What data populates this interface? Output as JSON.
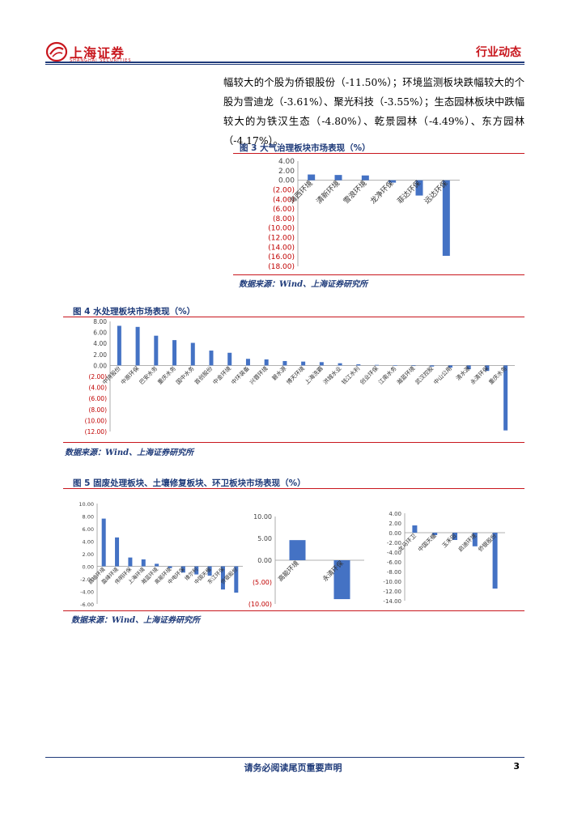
{
  "header": {
    "logo_text": "上海证券",
    "logo_sub": "SHANGHAI SECURITIES",
    "section_title": "行业动态"
  },
  "paragraph": "幅较大的个股为侨银股份（-11.50%）；环境监测板块跌幅较大的个股为雪迪龙（-3.61%）、聚光科技（-3.55%）；生态园林板块中跌幅较大的为铁汉生态（-4.80%）、乾景园林（-4.49%）、东方园林（-4.17%）。",
  "source_text": "数据来源：Wind、上海证券研究所",
  "figures": {
    "fig3_title": "图 3 大气治理板块市场表现（%）",
    "fig4_title": "图 4 水处理板块市场表现（%）",
    "fig5_title": "图 5 固废处理板块、土壤修复板块、环卫板块市场表现（%）"
  },
  "footer": {
    "disclaimer": "请务必阅读尾页重要声明",
    "page_number": "3"
  },
  "colors": {
    "bar": "#4472c4",
    "neg_label": "#c00000",
    "accent": "#c8161d",
    "navy": "#1f3b7a"
  },
  "chart_data": [
    {
      "type": "bar",
      "id": "fig3",
      "categories": [
        "海西环境",
        "清新环境",
        "雪浪环境",
        "龙净环保",
        "菲达环保",
        "远达环保"
      ],
      "values": [
        1.2,
        1.1,
        1.0,
        -0.5,
        -3.2,
        -15.8
      ],
      "ylim": [
        -18,
        4
      ],
      "yticks": [
        "4.00",
        "2.00",
        "0.00",
        "(2.00)",
        "(4.00)",
        "(6.00)",
        "(8.00)",
        "(10.00)",
        "(12.00)",
        "(14.00)",
        "(16.00)",
        "(18.00)"
      ]
    },
    {
      "type": "bar",
      "id": "fig4",
      "categories": [
        "中持股份",
        "中原环保",
        "巴安水务",
        "重庆水务",
        "国中水务",
        "首创股份",
        "中金环境",
        "中环装备",
        "兴蓉环境",
        "碧水源",
        "博天环境",
        "上海洗霸",
        "洪城水业",
        "钱江水利",
        "创业环保",
        "江南水务",
        "瀚蓝环境",
        "武汉控股",
        "中山公用",
        "清水源",
        "永清环保",
        "重庆水务"
      ],
      "values": [
        7.2,
        7.0,
        5.4,
        4.6,
        4.1,
        2.7,
        2.3,
        1.2,
        1.1,
        0.8,
        0.7,
        0.6,
        0.4,
        0.2,
        0.1,
        0.05,
        -0.1,
        -0.2,
        -0.4,
        -0.7,
        -1.0,
        -11.8
      ],
      "ylim": [
        -12,
        8
      ],
      "yticks": [
        "8.00",
        "6.00",
        "4.00",
        "2.00",
        "0.00",
        "(2.00)",
        "(4.00)",
        "(6.00)",
        "(8.00)",
        "(10.00)",
        "(12.00)"
      ]
    },
    {
      "type": "bar",
      "id": "fig5a",
      "categories": [
        "启迪环境",
        "盈峰环境",
        "伟明环保",
        "上海环境",
        "瀚蓝环境",
        "高能环境",
        "中电环保",
        "维尔利",
        "中国天楹",
        "东江环保",
        "侨银股份"
      ],
      "values": [
        7.6,
        4.6,
        1.4,
        1.1,
        0.4,
        -0.3,
        -1.0,
        -1.3,
        -1.5,
        -3.7,
        -4.2
      ],
      "ylim": [
        -6,
        10
      ],
      "yticks": [
        "10.00",
        "8.00",
        "6.00",
        "4.00",
        "2.00",
        "0.00",
        "-2.00",
        "-4.00",
        "-6.00"
      ]
    },
    {
      "type": "bar",
      "id": "fig5b",
      "categories": [
        "高能环境",
        "永清环保"
      ],
      "values": [
        4.6,
        -8.9
      ],
      "ylim": [
        -10,
        10
      ],
      "yticks": [
        "10.00",
        "5.00",
        "0.00",
        "(5.00)",
        "(10.00)"
      ]
    },
    {
      "type": "bar",
      "id": "fig5c",
      "categories": [
        "龙马环卫",
        "中国天楹",
        "玉禾田",
        "启迪环境",
        "侨银股份"
      ],
      "values": [
        1.5,
        -0.5,
        -1.5,
        -2.8,
        -11.5
      ],
      "ylim": [
        -14,
        4
      ],
      "yticks": [
        "4.00",
        "2.00",
        "0.00",
        "-2.00",
        "-4.00",
        "-6.00",
        "-8.00",
        "-10.00",
        "-12.00",
        "-14.00"
      ]
    }
  ]
}
